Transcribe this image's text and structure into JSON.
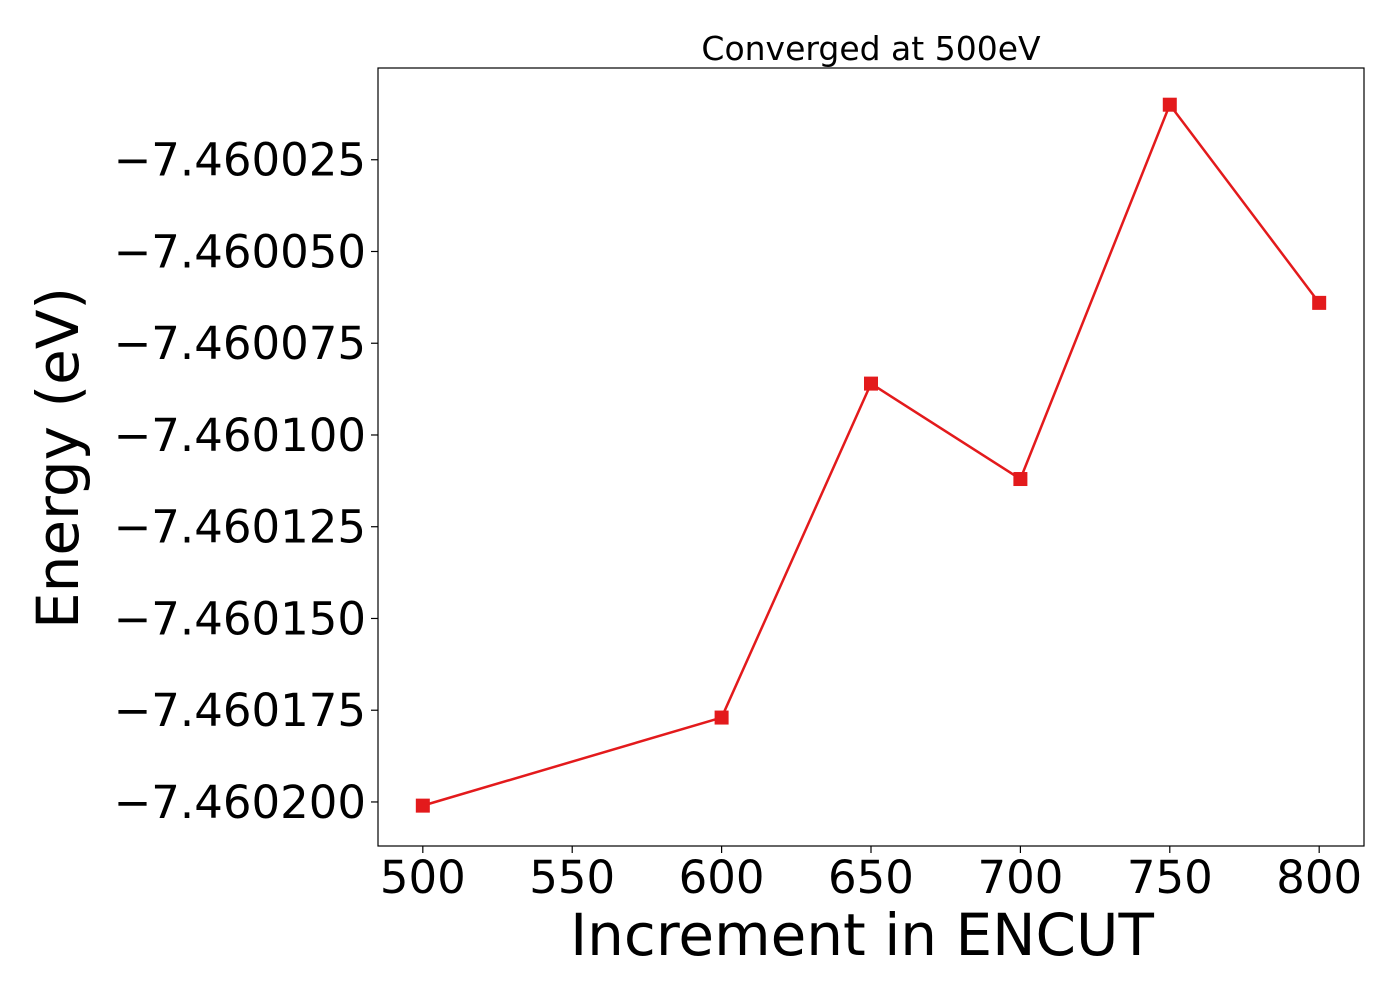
{
  "chart_data": {
    "type": "line",
    "title": "Converged at 500eV",
    "xlabel": "Increment in ENCUT",
    "ylabel": "Energy (eV)",
    "x": [
      500,
      600,
      650,
      700,
      750,
      800
    ],
    "series": [
      {
        "values": [
          -7.460201,
          -7.460177,
          -7.460086,
          -7.460112,
          -7.46001,
          -7.460064
        ],
        "color": "#e31a1c",
        "marker": "square"
      }
    ],
    "xlim": [
      485,
      815
    ],
    "ylim": [
      -7.460212,
      -7.46
    ],
    "xticks": [
      500,
      550,
      600,
      650,
      700,
      750,
      800
    ],
    "xtick_labels": [
      "500",
      "550",
      "600",
      "650",
      "700",
      "750",
      "800"
    ],
    "yticks": [
      -7.460025,
      -7.46005,
      -7.460075,
      -7.4601,
      -7.460125,
      -7.46015,
      -7.460175,
      -7.4602
    ],
    "ytick_labels": [
      "−7.460025",
      "−7.460050",
      "−7.460075",
      "−7.460100",
      "−7.460125",
      "−7.460150",
      "−7.460175",
      "−7.460200"
    ],
    "grid": false,
    "legend": false
  }
}
